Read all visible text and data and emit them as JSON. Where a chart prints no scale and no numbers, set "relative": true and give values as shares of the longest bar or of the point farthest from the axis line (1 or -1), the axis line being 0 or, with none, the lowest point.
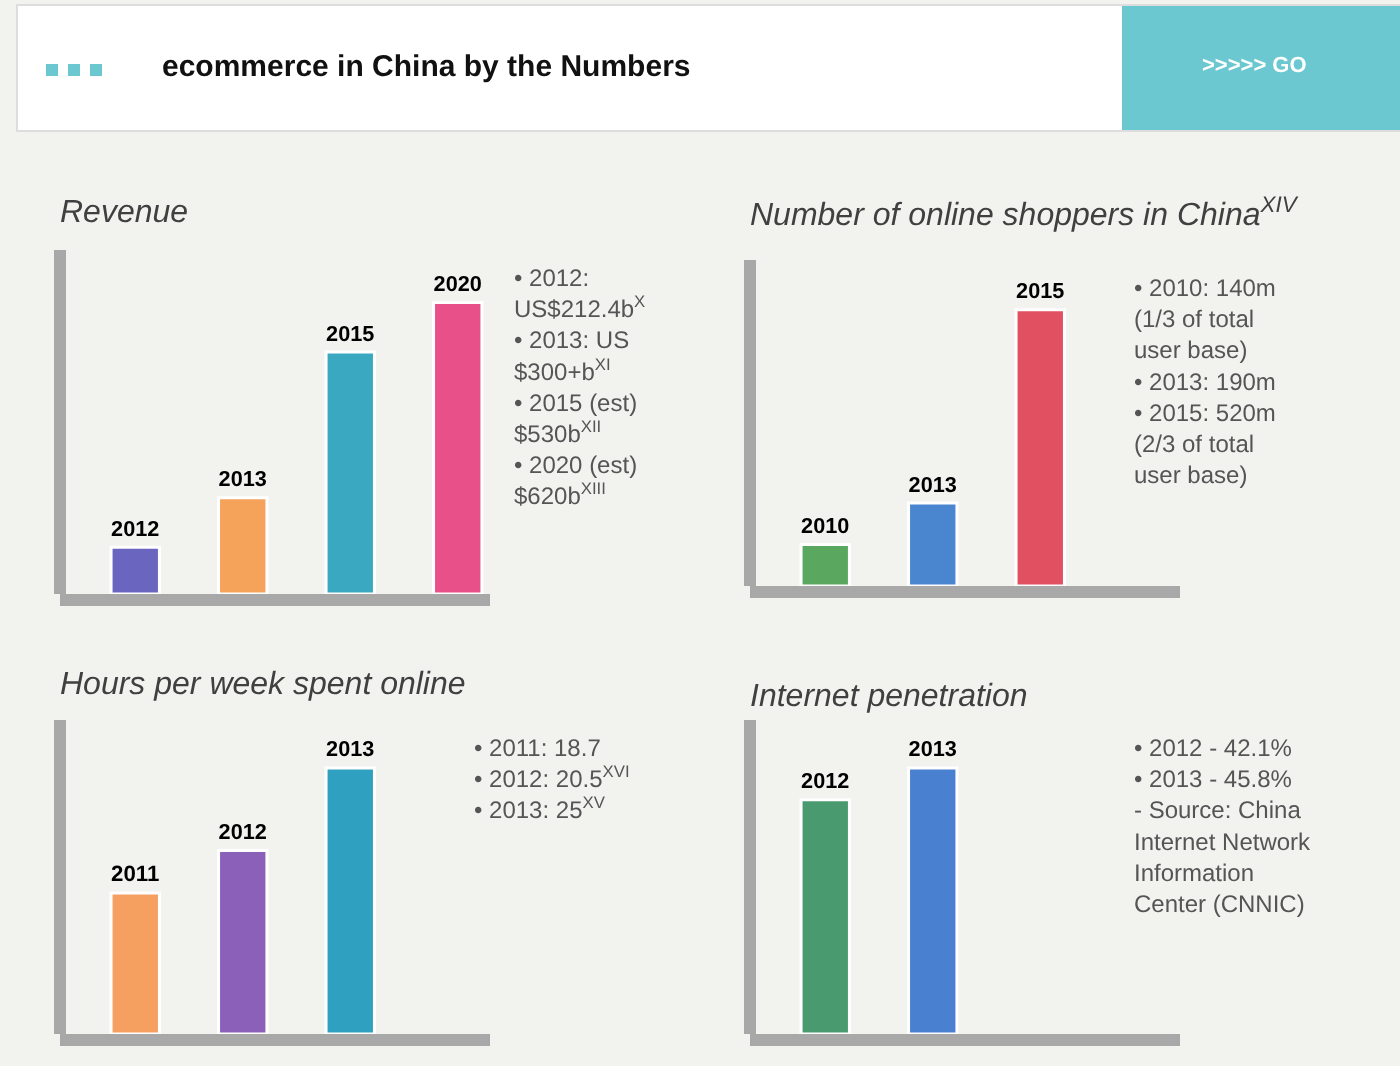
{
  "chart_data": [
    {
      "type": "bar",
      "title": "Revenue",
      "relative": true,
      "categories": [
        "2012",
        "2013",
        "2015",
        "2020"
      ],
      "values": [
        0.16,
        0.33,
        0.83,
        1
      ],
      "colors": [
        "#6a66c0",
        "#f5a25a",
        "#3aa8c0",
        "#e8508a"
      ],
      "annotations": [
        "ecommerce in China by the Numbers",
        ">>>>> GO",
        "• 2012: US$212.4b$^{X}$",
        "• 2013: US $300+b$^{XI}$",
        "• 2015 (est) $530b$^{XII}$",
        "• 2020 (est) $620b$^{XIII}$"
      ]
    },
    {
      "type": "bar",
      "title": "Number of online shoppers in China$^{XIV}$",
      "relative": true,
      "categories": [
        "2010",
        "2013",
        "2015"
      ],
      "values": [
        0.15,
        0.3,
        1
      ],
      "colors": [
        "#5aa860",
        "#4a86d0",
        "#e05060"
      ],
      "annotations": [
        "• 2010: 140m (1/3 of total user base)",
        "• 2013: 190m",
        "• 2015: 520m (2/3 of total user base)"
      ]
    },
    {
      "type": "bar",
      "title": "Hours per week spent online",
      "relative": true,
      "categories": [
        "2011",
        "2012",
        "2013"
      ],
      "values": [
        0.53,
        0.69,
        1
      ],
      "colors": [
        "#f5a060",
        "#8a60b8",
        "#30a0c0"
      ],
      "annotations": [
        "• 2011: 18.7",
        "• 2012: 20.5$^{XVI}$",
        "• 2013: 25$^{XV}$"
      ]
    },
    {
      "type": "bar",
      "title": "Internet penetration",
      "relative": true,
      "categories": [
        "2012",
        "2013"
      ],
      "values": [
        0.88,
        1
      ],
      "colors": [
        "#4a9a70",
        "#4a80d0"
      ],
      "annotations": [
        "• 2012 - 42.1%",
        "• 2013 - 45.8%",
        "- Source: China Internet Network Information Center (CNNIC)"
      ]
    }
  ]
}
